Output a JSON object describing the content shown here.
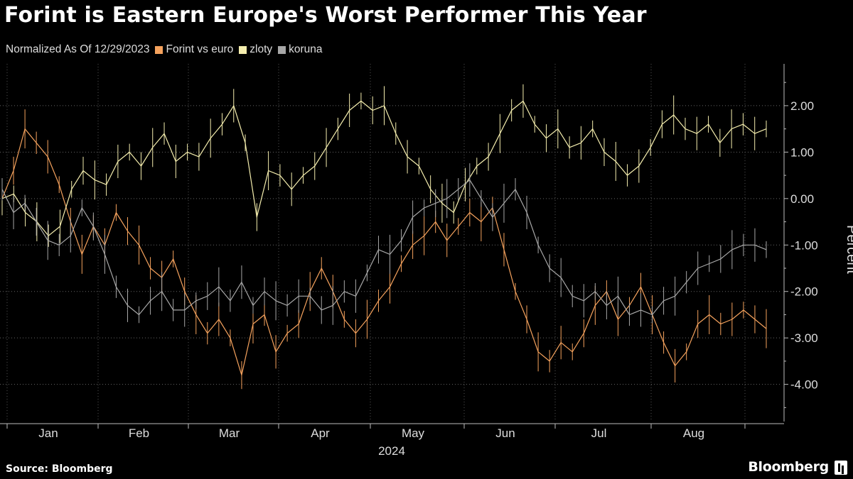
{
  "title": "Forint is Eastern Europe's Worst Performer This Year",
  "subtitle": "Normalized As Of 12/29/2023",
  "source": "Source: Bloomberg",
  "brand": "Bloomberg",
  "chart_data": {
    "type": "line",
    "ylabel": "Percent",
    "xlabel": "2024",
    "ylim": [
      -4.8,
      2.9
    ],
    "yticks": [
      2,
      1,
      0,
      -1,
      -2,
      -3,
      -4
    ],
    "ytick_labels": [
      "2.00",
      "1.00",
      "0.00",
      "-1.00",
      "-2.00",
      "-3.00",
      "-4.00"
    ],
    "grid": true,
    "legend_placement": "top-left",
    "months": [
      "Jan",
      "Feb",
      "Mar",
      "Apr",
      "May",
      "Jun",
      "Jul",
      "Aug"
    ],
    "series": [
      {
        "name": "Forint vs euro",
        "color": "#f5a25d",
        "values": [
          0.0,
          0.6,
          1.5,
          1.2,
          0.9,
          0.3,
          -0.5,
          -1.2,
          -0.6,
          -1.0,
          -0.3,
          -0.7,
          -1.0,
          -1.5,
          -1.7,
          -1.3,
          -2.0,
          -2.5,
          -2.9,
          -2.6,
          -3.0,
          -3.8,
          -2.7,
          -2.5,
          -3.3,
          -2.9,
          -2.7,
          -2.0,
          -1.5,
          -2.0,
          -2.6,
          -2.9,
          -2.6,
          -2.2,
          -1.9,
          -1.4,
          -1.0,
          -0.8,
          -0.5,
          -0.9,
          -0.6,
          -0.3,
          -0.5,
          -0.2,
          -1.1,
          -2.0,
          -2.6,
          -3.3,
          -3.5,
          -3.1,
          -3.3,
          -2.9,
          -2.3,
          -2.0,
          -2.6,
          -2.3,
          -1.9,
          -2.5,
          -3.1,
          -3.6,
          -3.3,
          -2.7,
          -2.5,
          -2.7,
          -2.6,
          -2.4,
          -2.6,
          -2.8
        ]
      },
      {
        "name": "zloty",
        "color": "#f5eeae",
        "values": [
          0.0,
          0.1,
          -0.3,
          -0.5,
          -0.8,
          -0.6,
          0.2,
          0.6,
          0.4,
          0.3,
          0.8,
          1.0,
          0.7,
          1.1,
          1.4,
          0.8,
          1.0,
          0.9,
          1.3,
          1.6,
          2.0,
          1.2,
          -0.4,
          0.6,
          0.5,
          0.2,
          0.5,
          0.7,
          1.1,
          1.5,
          1.9,
          2.1,
          1.9,
          2.0,
          1.4,
          0.9,
          0.7,
          0.2,
          -0.1,
          -0.3,
          0.3,
          0.7,
          0.9,
          1.4,
          1.9,
          2.1,
          1.6,
          1.3,
          1.5,
          1.1,
          1.2,
          1.5,
          1.0,
          0.8,
          0.5,
          0.7,
          1.1,
          1.6,
          1.8,
          1.5,
          1.4,
          1.6,
          1.2,
          1.5,
          1.6,
          1.4,
          1.5
        ]
      },
      {
        "name": "koruna",
        "color": "#a7a7a7",
        "values": [
          0.2,
          -0.3,
          -0.1,
          -0.5,
          -0.9,
          -1.0,
          -0.8,
          -0.2,
          -0.6,
          -1.2,
          -1.9,
          -2.3,
          -2.5,
          -2.2,
          -2.0,
          -2.4,
          -2.4,
          -2.2,
          -2.1,
          -1.9,
          -2.2,
          -1.8,
          -2.3,
          -2.0,
          -2.2,
          -2.3,
          -2.1,
          -2.1,
          -2.4,
          -2.3,
          -2.0,
          -2.1,
          -1.6,
          -1.1,
          -1.2,
          -0.9,
          -0.4,
          -0.2,
          -0.1,
          0.0,
          0.2,
          0.4,
          0.0,
          -0.4,
          -0.1,
          0.2,
          -0.3,
          -1.0,
          -1.5,
          -1.7,
          -2.1,
          -2.2,
          -2.0,
          -2.3,
          -2.1,
          -2.5,
          -2.4,
          -2.5,
          -2.2,
          -2.1,
          -1.8,
          -1.5,
          -1.4,
          -1.3,
          -1.1,
          -1.0,
          -1.0,
          -1.1
        ]
      }
    ]
  }
}
